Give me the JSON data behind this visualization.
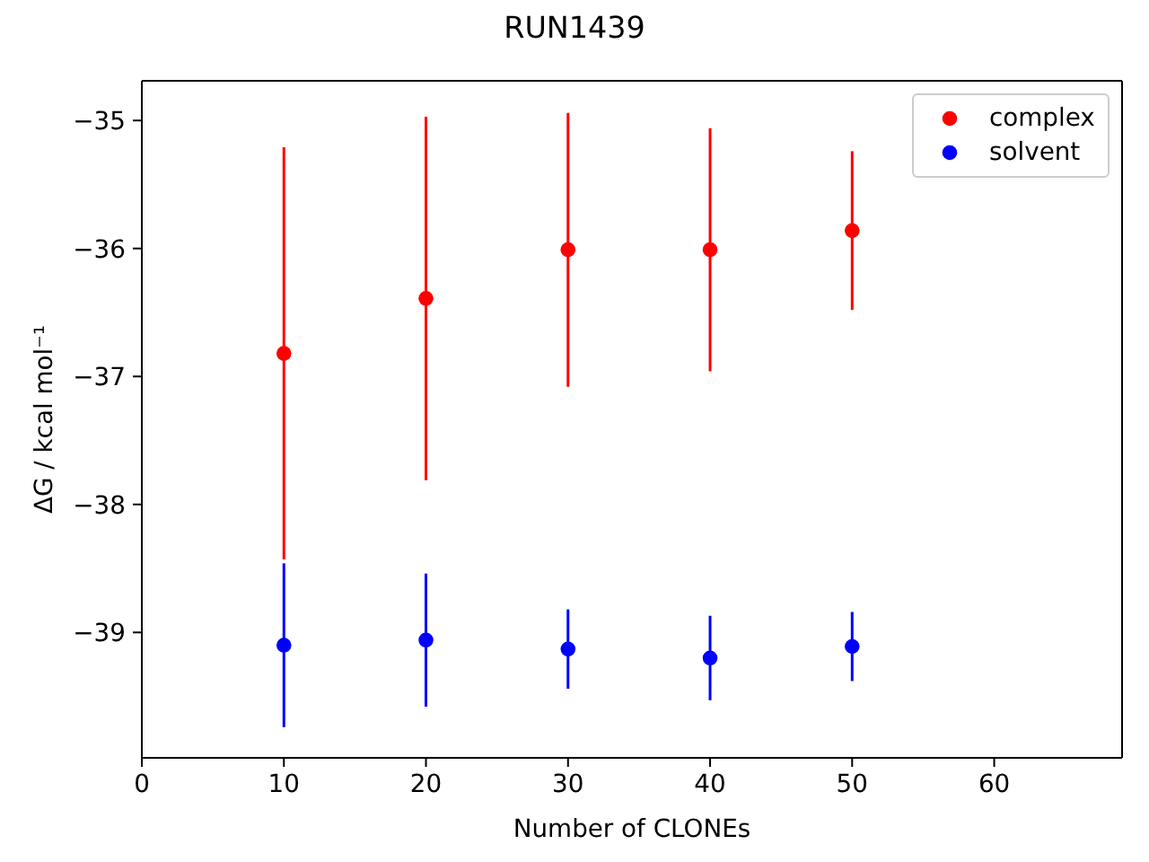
{
  "chart_data": {
    "type": "scatter",
    "title": "RUN1439",
    "xlabel": "Number of CLONEs",
    "ylabel": "ΔG / kcal mol⁻¹",
    "x": [
      10,
      20,
      30,
      40,
      50
    ],
    "series": [
      {
        "name": "complex",
        "color": "#ff0000",
        "values": [
          -36.82,
          -36.39,
          -36.01,
          -36.01,
          -35.86
        ],
        "errors": [
          1.61,
          1.42,
          1.07,
          0.95,
          0.62
        ]
      },
      {
        "name": "solvent",
        "color": "#0000ff",
        "values": [
          -39.1,
          -39.06,
          -39.13,
          -39.2,
          -39.11
        ],
        "errors": [
          0.64,
          0.52,
          0.31,
          0.33,
          0.27
        ]
      }
    ],
    "xlim": [
      0,
      69
    ],
    "ylim": [
      -39.98,
      -34.69
    ],
    "xticks": [
      0,
      10,
      20,
      30,
      40,
      50,
      60
    ],
    "yticks": [
      {
        "value": -39,
        "label": "−39"
      },
      {
        "value": -38,
        "label": "−38"
      },
      {
        "value": -37,
        "label": "−37"
      },
      {
        "value": -36,
        "label": "−36"
      },
      {
        "value": -35,
        "label": "−35"
      }
    ],
    "legend": "top right",
    "marker": "circle"
  }
}
